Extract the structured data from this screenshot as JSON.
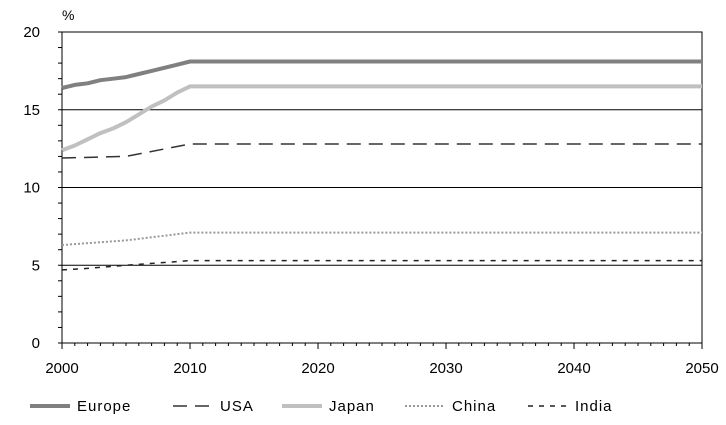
{
  "chart_data": {
    "type": "line",
    "title": "",
    "xlabel": "",
    "ylabel": "%",
    "xlim": [
      2000,
      2050
    ],
    "ylim": [
      0,
      20
    ],
    "x_ticks": [
      "2000",
      "2010",
      "2020",
      "2030",
      "2040",
      "2050"
    ],
    "y_ticks": [
      "0",
      "5",
      "10",
      "15",
      "20"
    ],
    "grid": "horizontal",
    "legend_position": "bottom",
    "series": [
      {
        "name": "Europe",
        "color": "#808080",
        "style": "solid-thick",
        "x": [
          2000,
          2001,
          2002,
          2003,
          2004,
          2005,
          2006,
          2007,
          2008,
          2009,
          2010,
          2050
        ],
        "y": [
          16.4,
          16.6,
          16.7,
          16.9,
          17.0,
          17.1,
          17.3,
          17.5,
          17.7,
          17.9,
          18.1,
          18.1
        ]
      },
      {
        "name": "USA",
        "color": "#333333",
        "style": "long-dash",
        "x": [
          2000,
          2005,
          2010,
          2050
        ],
        "y": [
          11.9,
          12.0,
          12.8,
          12.8
        ]
      },
      {
        "name": "Japan",
        "color": "#c0c0c0",
        "style": "solid-thick",
        "x": [
          2000,
          2001,
          2002,
          2003,
          2004,
          2005,
          2006,
          2007,
          2008,
          2009,
          2010,
          2050
        ],
        "y": [
          12.4,
          12.7,
          13.1,
          13.5,
          13.8,
          14.2,
          14.7,
          15.2,
          15.6,
          16.1,
          16.5,
          16.5
        ]
      },
      {
        "name": "China",
        "color": "#999999",
        "style": "dotted",
        "x": [
          2000,
          2005,
          2010,
          2050
        ],
        "y": [
          6.3,
          6.6,
          7.1,
          7.1
        ]
      },
      {
        "name": "India",
        "color": "#222222",
        "style": "short-dash",
        "x": [
          2000,
          2002,
          2005,
          2010,
          2050
        ],
        "y": [
          4.7,
          4.8,
          5.0,
          5.3,
          5.3
        ]
      }
    ]
  }
}
